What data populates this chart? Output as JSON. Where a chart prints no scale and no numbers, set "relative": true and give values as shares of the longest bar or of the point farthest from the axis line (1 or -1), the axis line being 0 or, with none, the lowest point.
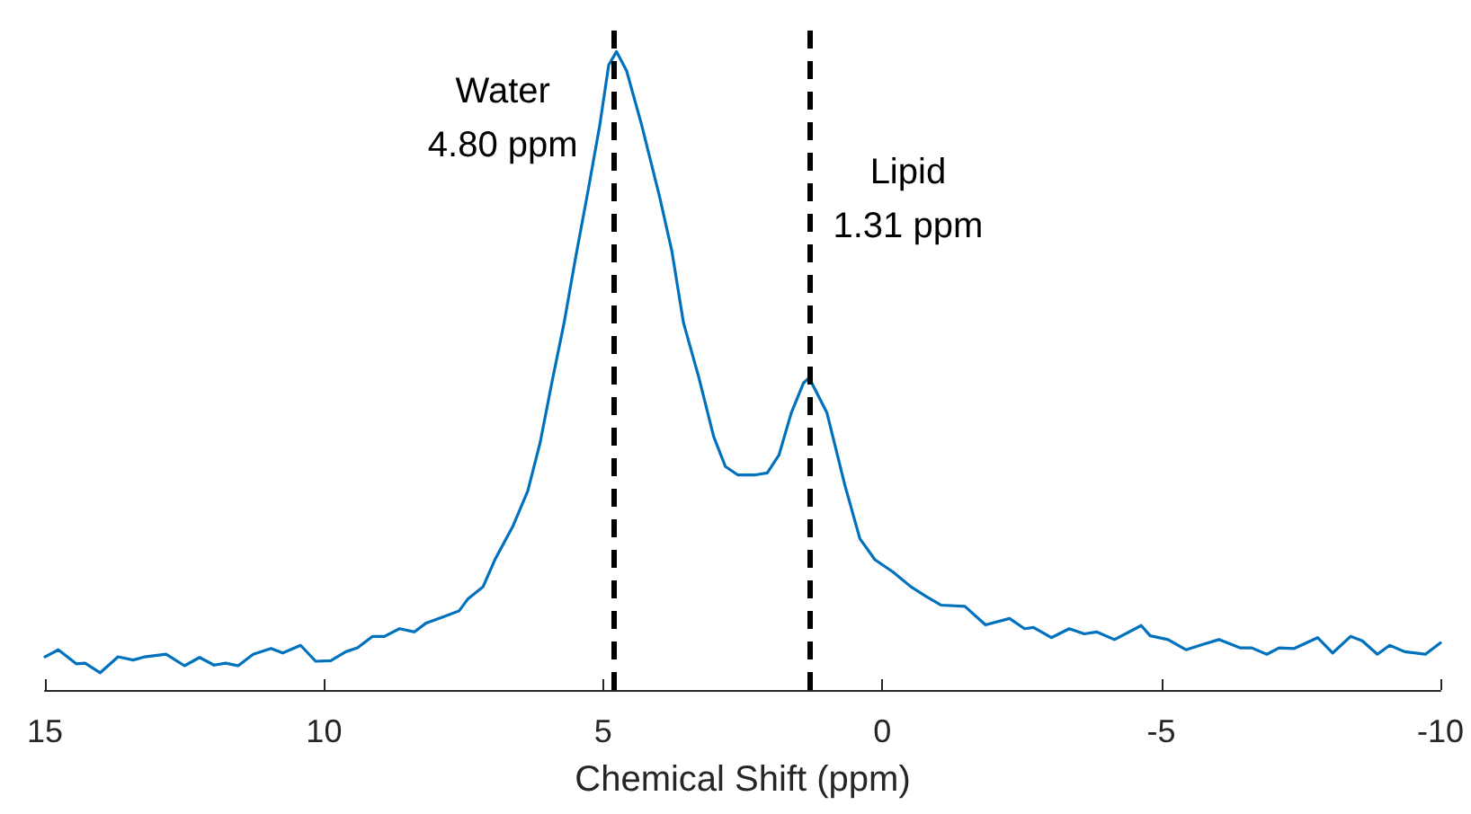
{
  "chart_data": {
    "type": "line",
    "relative": true,
    "xlabel": "Chemical Shift (ppm)",
    "xlim": [
      15,
      -10
    ],
    "xticks": [
      15,
      10,
      5,
      0,
      -5,
      -10
    ],
    "marker": "none",
    "line_style": "solid",
    "grid": false,
    "x": [
      15.0,
      14.76,
      14.44,
      14.28,
      14.01,
      13.69,
      13.42,
      13.21,
      12.83,
      12.5,
      12.23,
      11.97,
      11.76,
      11.54,
      11.27,
      10.95,
      10.74,
      10.42,
      10.15,
      9.88,
      9.61,
      9.4,
      9.13,
      8.92,
      8.65,
      8.38,
      8.17,
      7.85,
      7.58,
      7.42,
      7.15,
      6.94,
      6.62,
      6.35,
      6.13,
      5.92,
      5.7,
      5.49,
      5.27,
      5.06,
      4.9,
      4.76,
      4.58,
      4.31,
      3.99,
      3.77,
      3.56,
      3.29,
      3.02,
      2.81,
      2.59,
      2.27,
      2.06,
      1.85,
      1.63,
      1.41,
      1.31,
      0.99,
      0.67,
      0.4,
      0.13,
      -0.19,
      -0.51,
      -0.78,
      -1.05,
      -1.48,
      -1.85,
      -2.28,
      -2.55,
      -2.71,
      -3.03,
      -3.35,
      -3.62,
      -3.84,
      -4.16,
      -4.64,
      -4.8,
      -5.12,
      -5.44,
      -5.77,
      -6.03,
      -6.41,
      -6.62,
      -6.89,
      -7.11,
      -7.38,
      -7.8,
      -8.07,
      -8.39,
      -8.6,
      -8.87,
      -9.09,
      -9.36,
      -9.73,
      -10.0
    ],
    "series": [
      {
        "color": "#0072bd",
        "values": [
          0.052,
          0.063,
          0.041,
          0.042,
          0.027,
          0.052,
          0.047,
          0.052,
          0.056,
          0.038,
          0.051,
          0.039,
          0.042,
          0.038,
          0.056,
          0.065,
          0.058,
          0.07,
          0.045,
          0.046,
          0.06,
          0.066,
          0.084,
          0.084,
          0.096,
          0.091,
          0.105,
          0.115,
          0.124,
          0.143,
          0.162,
          0.204,
          0.256,
          0.312,
          0.387,
          0.481,
          0.575,
          0.679,
          0.782,
          0.885,
          0.979,
          1,
          0.97,
          0.885,
          0.773,
          0.688,
          0.575,
          0.491,
          0.397,
          0.35,
          0.337,
          0.337,
          0.34,
          0.368,
          0.434,
          0.481,
          0.489,
          0.434,
          0.321,
          0.237,
          0.204,
          0.185,
          0.162,
          0.147,
          0.133,
          0.131,
          0.102,
          0.112,
          0.096,
          0.098,
          0.082,
          0.096,
          0.088,
          0.091,
          0.079,
          0.101,
          0.085,
          0.079,
          0.063,
          0.072,
          0.079,
          0.066,
          0.066,
          0.056,
          0.066,
          0.065,
          0.082,
          0.058,
          0.084,
          0.077,
          0.056,
          0.07,
          0.06,
          0.056,
          0.074
        ]
      }
    ],
    "ref_lines": [
      {
        "axis": "x",
        "value": 4.8,
        "label": "Water\n4.80 ppm",
        "color": "#000000",
        "line_style": "dashed"
      },
      {
        "axis": "x",
        "value": 1.31,
        "label": "Lipid\n1.31 ppm",
        "color": "#000000",
        "line_style": "dashed"
      }
    ]
  }
}
